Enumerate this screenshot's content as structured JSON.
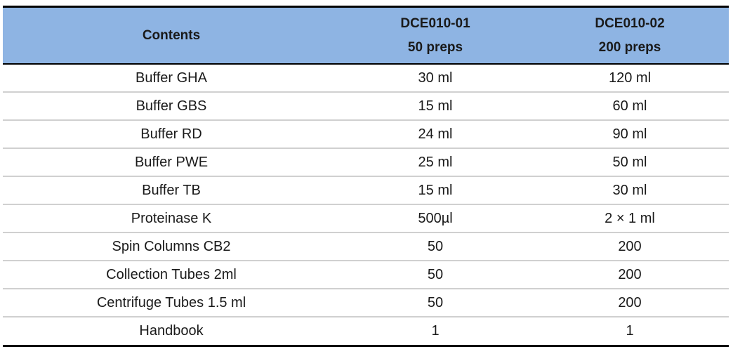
{
  "table": {
    "headers": {
      "contents": "Contents",
      "col1": {
        "code": "DCE010-01",
        "preps": "50 preps"
      },
      "col2": {
        "code": "DCE010-02",
        "preps": "200 preps"
      }
    },
    "rows": [
      {
        "item": "Buffer GHA",
        "v1": "30 ml",
        "v2": "120 ml"
      },
      {
        "item": "Buffer GBS",
        "v1": "15 ml",
        "v2": "60 ml"
      },
      {
        "item": "Buffer RD",
        "v1": "24 ml",
        "v2": "90 ml"
      },
      {
        "item": "Buffer PWE",
        "v1": "25 ml",
        "v2": "50 ml"
      },
      {
        "item": "Buffer TB",
        "v1": "15 ml",
        "v2": "30 ml"
      },
      {
        "item": "Proteinase K",
        "v1": "500µl",
        "v2": "2 × 1 ml"
      },
      {
        "item": "Spin Columns CB2",
        "v1": "50",
        "v2": "200"
      },
      {
        "item": "Collection Tubes 2ml",
        "v1": "50",
        "v2": "200"
      },
      {
        "item": "Centrifuge Tubes 1.5 ml",
        "v1": "50",
        "v2": "200"
      },
      {
        "item": "Handbook",
        "v1": "1",
        "v2": "1"
      }
    ]
  },
  "colors": {
    "header_bg": "#8eb4e3",
    "rule": "#000000",
    "row_divider": "#d0d0d0"
  }
}
